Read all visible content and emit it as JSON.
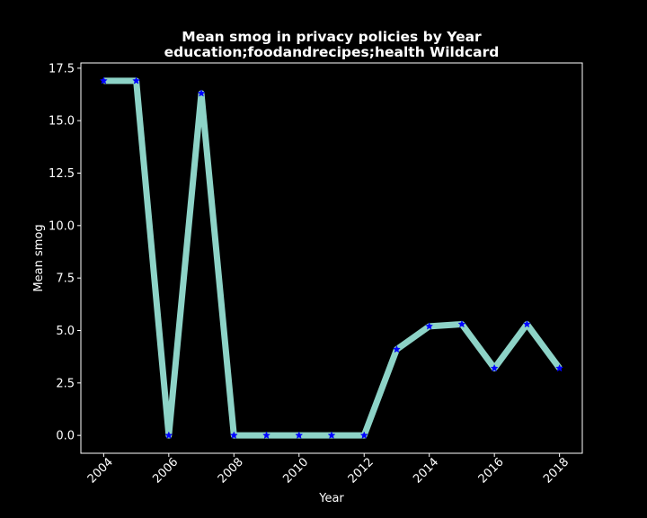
{
  "chart_data": {
    "type": "line",
    "title": "Mean smog in privacy policies by Year",
    "subtitle": "education;foodandrecipes;health Wildcard",
    "xlabel": "Year",
    "ylabel": "Mean smog",
    "x": [
      2004,
      2005,
      2006,
      2007,
      2008,
      2009,
      2010,
      2011,
      2012,
      2013,
      2014,
      2015,
      2016,
      2017,
      2018
    ],
    "series": [
      {
        "values": [
          16.9,
          16.9,
          0.0,
          16.3,
          0.0,
          0.0,
          0.0,
          0.0,
          0.0,
          4.1,
          5.2,
          5.3,
          3.2,
          5.3,
          3.2
        ]
      }
    ],
    "xlim": [
      2003.3,
      2018.7
    ],
    "ylim": [
      -0.85,
      17.75
    ],
    "xticks": [
      2004,
      2006,
      2008,
      2010,
      2012,
      2014,
      2016,
      2018
    ],
    "xtick_labels": [
      "2004",
      "2006",
      "2008",
      "2010",
      "2012",
      "2014",
      "2016",
      "2018"
    ],
    "yticks": [
      0.0,
      2.5,
      5.0,
      7.5,
      10.0,
      12.5,
      15.0,
      17.5
    ],
    "ytick_labels": [
      "0.0",
      "2.5",
      "5.0",
      "7.5",
      "10.0",
      "12.5",
      "15.0",
      "17.5"
    ],
    "grid": false,
    "line_color": "#8dd3c7",
    "marker_color": "#0000ff",
    "marker": "star",
    "background": "#000000",
    "axis_color": "#ffffff"
  }
}
